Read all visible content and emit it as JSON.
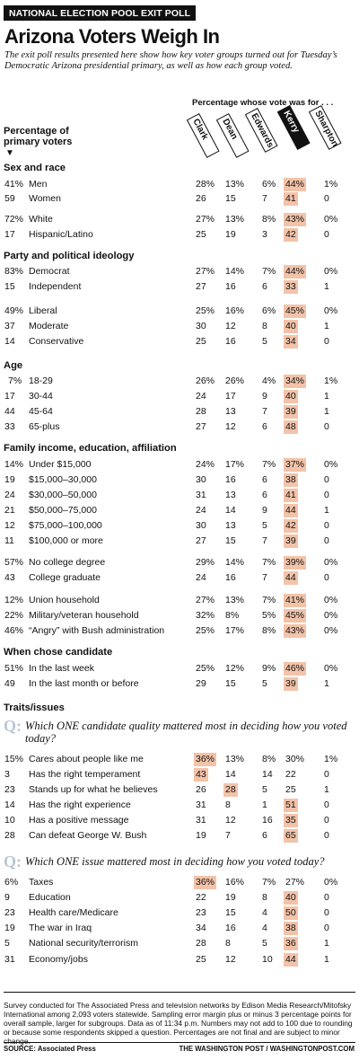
{
  "kicker": "NATIONAL ELECTION POOL EXIT POLL",
  "title": "Arizona Voters Weigh In",
  "intro": "The exit poll results presented here show how key voter groups turned out for Tuesday’s Democratic Arizona presidential primary, as well as how each group voted.",
  "pct_whose_vote": "Percentage whose vote was for . . .",
  "pct_primary_voters": "Percentage of primary voters",
  "down_arrow": "▼",
  "candidates": [
    "Clark",
    "Dean",
    "Edwards",
    "Kerry",
    "Sharpton"
  ],
  "sections": {
    "sex_race": "Sex and race",
    "party": "Party and political ideology",
    "age": "Age",
    "income": "Family income, education, affiliation",
    "when": "When chose candidate",
    "traits": "Traits/issues"
  },
  "rows": {
    "men": [
      "41%",
      "Men",
      "28%",
      "13%",
      "6%",
      "44%",
      "1%"
    ],
    "women": [
      "59",
      "Women",
      "26",
      "15",
      "7",
      "41",
      "0"
    ],
    "white": [
      "72%",
      "White",
      "27%",
      "13%",
      "8%",
      "43%",
      "0%"
    ],
    "hispanic": [
      "17",
      "Hispanic/Latino",
      "25",
      "19",
      "3",
      "42",
      "0"
    ],
    "democrat": [
      "83%",
      "Democrat",
      "27%",
      "14%",
      "7%",
      "44%",
      "0%"
    ],
    "independent": [
      "15",
      "Independent",
      "27",
      "16",
      "6",
      "33",
      "1"
    ],
    "liberal": [
      "49%",
      "Liberal",
      "25%",
      "16%",
      "6%",
      "45%",
      "0%"
    ],
    "moderate": [
      "37",
      "Moderate",
      "30",
      "12",
      "8",
      "40",
      "1"
    ],
    "conservative": [
      "14",
      "Conservative",
      "25",
      "16",
      "5",
      "34",
      "0"
    ],
    "a1829": [
      "7%",
      "18-29",
      "26%",
      "26%",
      "4%",
      "34%",
      "1%"
    ],
    "a3044": [
      "17",
      "30-44",
      "24",
      "17",
      "9",
      "40",
      "1"
    ],
    "a4564": [
      "44",
      "45-64",
      "28",
      "13",
      "7",
      "39",
      "1"
    ],
    "a65": [
      "33",
      "65-plus",
      "27",
      "12",
      "6",
      "48",
      "0"
    ],
    "i15": [
      "14%",
      "Under $15,000",
      "24%",
      "17%",
      "7%",
      "37%",
      "0%"
    ],
    "i30": [
      "19",
      "$15,000–30,000",
      "30",
      "16",
      "6",
      "38",
      "0"
    ],
    "i50": [
      "24",
      "$30,000–50,000",
      "31",
      "13",
      "6",
      "41",
      "0"
    ],
    "i75": [
      "21",
      "$50,000–75,000",
      "24",
      "14",
      "9",
      "44",
      "1"
    ],
    "i100": [
      "12",
      "$75,000–100,000",
      "30",
      "13",
      "5",
      "42",
      "0"
    ],
    "i100p": [
      "11",
      "$100,000 or more",
      "27",
      "15",
      "7",
      "39",
      "0"
    ],
    "nocollege": [
      "57%",
      "No college degree",
      "29%",
      "14%",
      "7%",
      "39%",
      "0%"
    ],
    "college": [
      "43",
      "College graduate",
      "24",
      "16",
      "7",
      "44",
      "0"
    ],
    "union": [
      "12%",
      "Union household",
      "27%",
      "13%",
      "7%",
      "41%",
      "0%"
    ],
    "military": [
      "22%",
      "Military/veteran household",
      "32%",
      "8%",
      "5%",
      "45%",
      "0%"
    ],
    "angry": [
      "46%",
      "“Angry” with Bush administration",
      "25%",
      "17%",
      "8%",
      "43%",
      "0%"
    ],
    "lastweek": [
      "51%",
      "In the last week",
      "25%",
      "12%",
      "9%",
      "46%",
      "0%"
    ],
    "lastmonth": [
      "49",
      "In the last month or before",
      "29",
      "15",
      "5",
      "39",
      "1"
    ],
    "cares": [
      "15%",
      "Cares about people like me",
      "36%",
      "13%",
      "8%",
      "30%",
      "1%"
    ],
    "temperament": [
      "3",
      "Has the right temperament",
      "43",
      "14",
      "14",
      "22",
      "0"
    ],
    "standsup": [
      "23",
      "Stands up for what he believes",
      "26",
      "28",
      "5",
      "25",
      "1"
    ],
    "experience": [
      "14",
      "Has the right experience",
      "31",
      "8",
      "1",
      "51",
      "0"
    ],
    "positive": [
      "10",
      "Has a positive message",
      "31",
      "12",
      "16",
      "35",
      "0"
    ],
    "defeat": [
      "28",
      "Can defeat George W. Bush",
      "19",
      "7",
      "6",
      "65",
      "0"
    ],
    "taxes": [
      "6%",
      "Taxes",
      "36%",
      "16%",
      "7%",
      "27%",
      "0%"
    ],
    "education": [
      "9",
      "Education",
      "22",
      "19",
      "8",
      "40",
      "0"
    ],
    "health": [
      "23",
      "Health care/Medicare",
      "23",
      "15",
      "4",
      "50",
      "0"
    ],
    "iraq": [
      "19",
      "The war in Iraq",
      "34",
      "16",
      "4",
      "38",
      "0"
    ],
    "security": [
      "5",
      "National security/terrorism",
      "28",
      "8",
      "5",
      "36",
      "1"
    ],
    "economy": [
      "31",
      "Economy/jobs",
      "25",
      "12",
      "10",
      "44",
      "1"
    ]
  },
  "q1": "Which ONE candidate quality mattered most in deciding how you voted today?",
  "q2": "Which ONE issue mattered most in deciding how you voted today?",
  "q_mark": "Q:",
  "note": "Survey conducted for The Associated Press and television networks by Edison Media Research/Mitofsky International among 2,093 voters statewide. Sampling error margin plus or minus 3 percentage points for overall sample, larger for subgroups. Data as of 11:34 p.m. Numbers may not add to 100 due to rounding or because some respondents skipped a question. Percentages are not final and are subject to minor change.",
  "source": "SOURCE: Associated Press",
  "credit": "THE WASHINGTON POST / WASHINGTONPOST.COM",
  "colors": {
    "highlight": "#f3c3a9",
    "q_mark": "#b9c6d3"
  }
}
